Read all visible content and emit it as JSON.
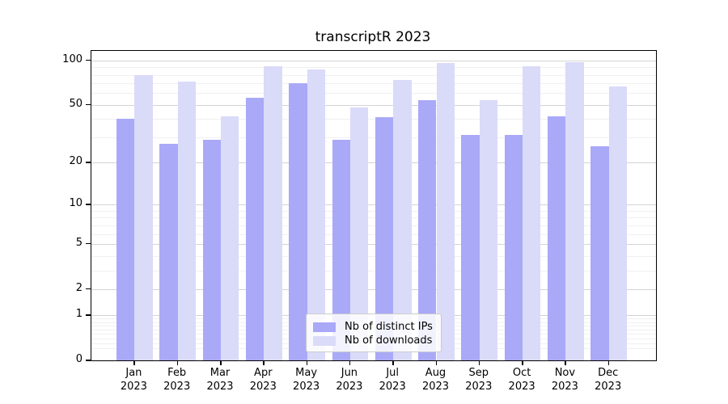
{
  "title": "transcriptR 2023",
  "chart_data": {
    "type": "bar",
    "title": "transcriptR 2023",
    "categories": [
      "Jan 2023",
      "Feb 2023",
      "Mar 2023",
      "Apr 2023",
      "May 2023",
      "Jun 2023",
      "Jul 2023",
      "Aug 2023",
      "Sep 2023",
      "Oct 2023",
      "Nov 2023",
      "Dec 2023"
    ],
    "category_months": [
      "Jan",
      "Feb",
      "Mar",
      "Apr",
      "May",
      "Jun",
      "Jul",
      "Aug",
      "Sep",
      "Oct",
      "Nov",
      "Dec"
    ],
    "category_year": "2023",
    "series": [
      {
        "name": "Nb of distinct IPs",
        "color": "#a9a9f8",
        "values": [
          40,
          27,
          29,
          56,
          70,
          29,
          41,
          54,
          31,
          31,
          42,
          26
        ]
      },
      {
        "name": "Nb of downloads",
        "color": "#dadaf9",
        "values": [
          80,
          72,
          42,
          92,
          87,
          48,
          74,
          96,
          54,
          91,
          97,
          67
        ]
      }
    ],
    "yscale": "log1p",
    "ylim": [
      0,
      115
    ],
    "y_major_ticks": [
      0,
      1,
      2,
      5,
      10,
      20,
      50,
      100
    ],
    "y_minor_gridlines": [
      0.2,
      0.3,
      0.4,
      0.5,
      0.6,
      0.7,
      0.8,
      0.9,
      3,
      4,
      6,
      7,
      8,
      9,
      30,
      40,
      60,
      70,
      80,
      90
    ],
    "grid": true,
    "legend_position": "lower center",
    "colors": {
      "major_grid": "#d4d4d4",
      "minor_grid": "#f0f0f0",
      "axis": "#000000",
      "background": "#ffffff"
    }
  },
  "legend": {
    "items": [
      {
        "label": "Nb of distinct IPs"
      },
      {
        "label": "Nb of downloads"
      }
    ]
  }
}
